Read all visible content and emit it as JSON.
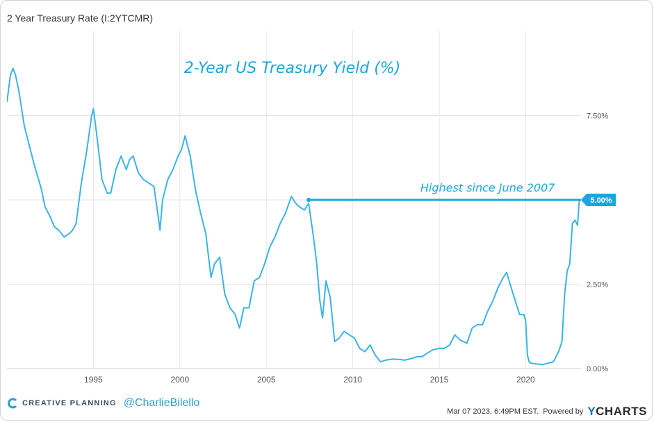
{
  "header": {
    "title": "2 Year Treasury Rate (I:2YTCMR)"
  },
  "footer": {
    "brand": "CREATIVE PLANNING",
    "handle": "@CharlieBilello",
    "timestamp": "Mar 07 2023, 6:49PM EST.",
    "powered_by": "Powered by",
    "logo_y": "Y",
    "logo_rest": "CHARTS"
  },
  "colors": {
    "line": "#3ab4e6",
    "annotation": "#1aa7df",
    "grid": "#e6e6e6",
    "axis_text": "#555555"
  },
  "chart_data": {
    "type": "line",
    "title": "2-Year US Treasury Yield (%)",
    "xlabel": "",
    "ylabel": "",
    "xlim": [
      1990.0,
      2023.2
    ],
    "ylim": [
      0,
      10.0
    ],
    "x_ticks": [
      1995,
      2000,
      2005,
      2010,
      2015,
      2020
    ],
    "x_tick_labels": [
      "1995",
      "2000",
      "2005",
      "2010",
      "2015",
      "2020"
    ],
    "y_ticks": [
      0,
      2.5,
      5.0,
      7.5
    ],
    "y_tick_labels": [
      "0.00%",
      "2.50%",
      "5.00%",
      "7.50%"
    ],
    "grid": true,
    "series": [
      {
        "name": "2 Year Treasury Rate",
        "x": [
          1990.0,
          1990.2,
          1990.35,
          1990.5,
          1990.7,
          1991.0,
          1991.3,
          1991.6,
          1992.0,
          1992.2,
          1992.5,
          1992.75,
          1993.0,
          1993.3,
          1993.6,
          1993.8,
          1994.0,
          1994.3,
          1994.6,
          1994.9,
          1995.0,
          1995.2,
          1995.5,
          1995.8,
          1996.0,
          1996.3,
          1996.6,
          1996.9,
          1997.1,
          1997.3,
          1997.6,
          1997.9,
          1998.2,
          1998.5,
          1998.75,
          1998.85,
          1999.0,
          1999.3,
          1999.6,
          1999.9,
          2000.1,
          2000.3,
          2000.6,
          2000.9,
          2001.2,
          2001.5,
          2001.8,
          2002.0,
          2002.3,
          2002.6,
          2002.9,
          2003.2,
          2003.45,
          2003.7,
          2004.0,
          2004.3,
          2004.6,
          2004.9,
          2005.2,
          2005.5,
          2005.8,
          2006.1,
          2006.45,
          2006.7,
          2006.9,
          2007.2,
          2007.45,
          2007.7,
          2007.9,
          2008.1,
          2008.25,
          2008.45,
          2008.7,
          2008.95,
          2009.2,
          2009.5,
          2009.8,
          2010.1,
          2010.4,
          2010.7,
          2011.0,
          2011.3,
          2011.6,
          2011.9,
          2012.3,
          2012.7,
          2013.0,
          2013.4,
          2013.7,
          2014.0,
          2014.3,
          2014.6,
          2015.0,
          2015.3,
          2015.6,
          2015.9,
          2016.2,
          2016.6,
          2016.9,
          2017.2,
          2017.5,
          2017.8,
          2018.1,
          2018.4,
          2018.7,
          2018.9,
          2019.1,
          2019.4,
          2019.65,
          2019.9,
          2020.0,
          2020.1,
          2020.2,
          2020.3,
          2020.6,
          2021.0,
          2021.3,
          2021.6,
          2021.9,
          2022.1,
          2022.25,
          2022.4,
          2022.55,
          2022.7,
          2022.85,
          2023.0,
          2023.1
        ],
        "values": [
          7.9,
          8.7,
          8.9,
          8.7,
          8.2,
          7.2,
          6.6,
          6.0,
          5.3,
          4.8,
          4.5,
          4.2,
          4.1,
          3.9,
          4.0,
          4.1,
          4.3,
          5.5,
          6.4,
          7.5,
          7.7,
          6.9,
          5.6,
          5.2,
          5.2,
          5.9,
          6.3,
          5.9,
          6.2,
          6.3,
          5.8,
          5.6,
          5.5,
          5.4,
          4.5,
          4.1,
          5.0,
          5.6,
          5.9,
          6.3,
          6.5,
          6.9,
          6.3,
          5.3,
          4.6,
          4.0,
          2.7,
          3.1,
          3.3,
          2.2,
          1.8,
          1.6,
          1.2,
          1.8,
          1.8,
          2.6,
          2.7,
          3.1,
          3.6,
          3.9,
          4.3,
          4.6,
          5.1,
          4.9,
          4.8,
          4.7,
          4.9,
          4.0,
          3.2,
          2.0,
          1.5,
          2.6,
          2.1,
          0.8,
          0.9,
          1.1,
          1.0,
          0.9,
          0.6,
          0.5,
          0.7,
          0.4,
          0.2,
          0.25,
          0.28,
          0.27,
          0.25,
          0.3,
          0.35,
          0.35,
          0.45,
          0.55,
          0.6,
          0.6,
          0.7,
          1.0,
          0.85,
          0.75,
          1.2,
          1.3,
          1.3,
          1.7,
          2.0,
          2.4,
          2.7,
          2.85,
          2.5,
          2.0,
          1.6,
          1.6,
          1.4,
          0.4,
          0.2,
          0.16,
          0.14,
          0.12,
          0.16,
          0.2,
          0.5,
          0.8,
          2.2,
          2.9,
          3.1,
          4.3,
          4.4,
          4.25,
          5.0
        ]
      }
    ],
    "annotations": {
      "reference_value": 5.0,
      "reference_start_x": 2007.45,
      "reference_label": "Highest since June 2007",
      "value_badge": "5.00%"
    }
  }
}
